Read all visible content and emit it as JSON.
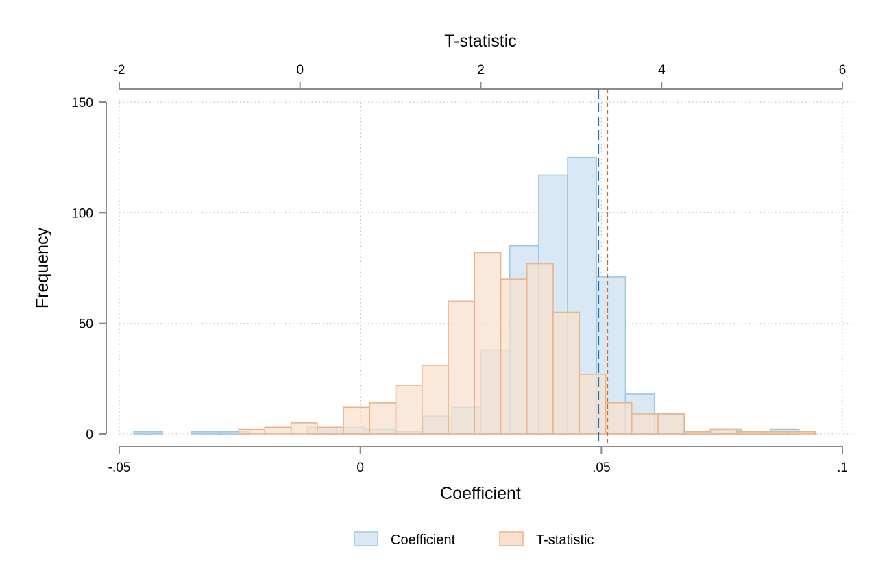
{
  "chart_data": {
    "type": "bar",
    "subtype": "overlaid-histogram",
    "title": "",
    "xlabel": "Coefficient",
    "x2label": "T-statistic",
    "ylabel": "Frequency",
    "xlim": [
      -0.05,
      0.1
    ],
    "x2lim": [
      -2,
      6
    ],
    "ylim": [
      0,
      150
    ],
    "xticks": [
      -0.05,
      0,
      0.05,
      0.1
    ],
    "xtick_labels": [
      "-.05",
      "0",
      ".05",
      ".1"
    ],
    "x2ticks": [
      -2,
      0,
      2,
      4,
      6
    ],
    "x2tick_labels": [
      "-2",
      "0",
      "2",
      "4",
      "6"
    ],
    "yticks": [
      0,
      50,
      100,
      150
    ],
    "ytick_labels": [
      "0",
      "50",
      "100",
      "150"
    ],
    "grid": true,
    "legend_position": "bottom",
    "series": [
      {
        "name": "Coefficient",
        "axis": "bottom",
        "color": "#9cc7e4",
        "fill": "#d8e8f4",
        "bin_width": 0.006,
        "bins": [
          {
            "start": -0.047,
            "count": 1
          },
          {
            "start": -0.035,
            "count": 1
          },
          {
            "start": -0.029,
            "count": 1
          },
          {
            "start": -0.011,
            "count": 3
          },
          {
            "start": -0.005,
            "count": 3
          },
          {
            "start": 0.001,
            "count": 2
          },
          {
            "start": 0.007,
            "count": 1
          },
          {
            "start": 0.013,
            "count": 8
          },
          {
            "start": 0.019,
            "count": 12
          },
          {
            "start": 0.025,
            "count": 38
          },
          {
            "start": 0.031,
            "count": 85
          },
          {
            "start": 0.037,
            "count": 117
          },
          {
            "start": 0.043,
            "count": 125
          },
          {
            "start": 0.049,
            "count": 71
          },
          {
            "start": 0.055,
            "count": 18
          },
          {
            "start": 0.061,
            "count": 9
          },
          {
            "start": 0.067,
            "count": 1
          },
          {
            "start": 0.073,
            "count": 2
          },
          {
            "start": 0.079,
            "count": 1
          },
          {
            "start": 0.085,
            "count": 2
          }
        ],
        "reference_line": 0.0494
      },
      {
        "name": "T-statistic",
        "axis": "top",
        "color": "#e9b48c",
        "fill": "#f8e0cc",
        "bin_width": 0.29,
        "bins": [
          {
            "start": -0.68,
            "count": 2
          },
          {
            "start": -0.39,
            "count": 3
          },
          {
            "start": -0.1,
            "count": 5
          },
          {
            "start": 0.19,
            "count": 3
          },
          {
            "start": 0.48,
            "count": 12
          },
          {
            "start": 0.77,
            "count": 14
          },
          {
            "start": 1.06,
            "count": 22
          },
          {
            "start": 1.35,
            "count": 31
          },
          {
            "start": 1.64,
            "count": 60
          },
          {
            "start": 1.93,
            "count": 82
          },
          {
            "start": 2.22,
            "count": 70
          },
          {
            "start": 2.51,
            "count": 77
          },
          {
            "start": 2.8,
            "count": 55
          },
          {
            "start": 3.09,
            "count": 27
          },
          {
            "start": 3.38,
            "count": 14
          },
          {
            "start": 3.67,
            "count": 9
          },
          {
            "start": 3.96,
            "count": 9
          },
          {
            "start": 4.25,
            "count": 1
          },
          {
            "start": 4.54,
            "count": 2
          },
          {
            "start": 4.83,
            "count": 1
          },
          {
            "start": 5.12,
            "count": 1
          },
          {
            "start": 5.41,
            "count": 1
          }
        ],
        "reference_line": 3.4
      }
    ]
  },
  "colors": {
    "coefficient_line": "#1a73b8",
    "tstat_line": "#d2691e",
    "axis": "#8a8a8a",
    "grid": "#bdbdbd",
    "overlap": "#dcd6cf"
  }
}
